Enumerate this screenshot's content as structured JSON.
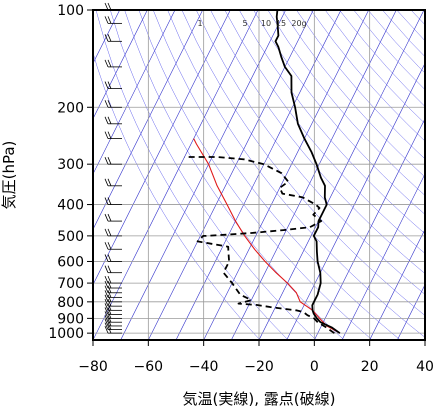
{
  "chart_data": {
    "type": "line",
    "title": "",
    "xlabel": "気温(実線), 露点(破線)",
    "ylabel": "気圧(hPa)",
    "xlim": [
      -80,
      40
    ],
    "ylim": [
      1050,
      100
    ],
    "y_scale": "log",
    "grid": true,
    "x_ticks": [
      "−80",
      "−60",
      "−40",
      "−20",
      "0",
      "20",
      "40"
    ],
    "y_ticks": [
      "100",
      "200",
      "300",
      "400",
      "500",
      "600",
      "700",
      "800",
      "900",
      "1000"
    ],
    "mixing_ratio_labels": [
      "1",
      "5",
      "10",
      "15",
      "20g"
    ],
    "colors": {
      "temperature": "#000000",
      "dewpoint": "#000000",
      "isotherm": "#3333cc",
      "adiabat": "#6666ee",
      "parcel": "#e01b1b",
      "grid": "#9a9a9a"
    },
    "series": [
      {
        "key": "temperature",
        "style": "solid",
        "points": [
          [
            8,
            1000
          ],
          [
            4,
            960
          ],
          [
            -1,
            925
          ],
          [
            -3,
            900
          ],
          [
            -5,
            870
          ],
          [
            -6,
            850
          ],
          [
            -7,
            820
          ],
          [
            -7,
            800
          ],
          [
            -7,
            760
          ],
          [
            -8,
            700
          ],
          [
            -10,
            650
          ],
          [
            -13,
            600
          ],
          [
            -15,
            560
          ],
          [
            -17,
            520
          ],
          [
            -19,
            500
          ],
          [
            -19,
            470
          ],
          [
            -20,
            450
          ],
          [
            -20,
            425
          ],
          [
            -20,
            400
          ],
          [
            -22,
            380
          ],
          [
            -24,
            350
          ],
          [
            -27,
            330
          ],
          [
            -31,
            300
          ],
          [
            -35,
            275
          ],
          [
            -40,
            250
          ],
          [
            -45,
            225
          ],
          [
            -49,
            200
          ],
          [
            -53,
            180
          ],
          [
            -56,
            160
          ],
          [
            -60,
            150
          ],
          [
            -63,
            140
          ],
          [
            -66,
            130
          ],
          [
            -68,
            125
          ],
          [
            -68,
            120
          ],
          [
            -70,
            112
          ],
          [
            -72,
            105
          ],
          [
            -73,
            100
          ]
        ]
      },
      {
        "key": "dewpoint",
        "style": "dashed",
        "points": [
          [
            6,
            1000
          ],
          [
            2,
            960
          ],
          [
            -2,
            925
          ],
          [
            -4,
            900
          ],
          [
            -7,
            880
          ],
          [
            -9,
            860
          ],
          [
            -12,
            850
          ],
          [
            -17,
            840
          ],
          [
            -22,
            830
          ],
          [
            -27,
            818
          ],
          [
            -34,
            810
          ],
          [
            -30,
            790
          ],
          [
            -35,
            760
          ],
          [
            -40,
            700
          ],
          [
            -45,
            650
          ],
          [
            -45,
            600
          ],
          [
            -47,
            560
          ],
          [
            -48,
            540
          ],
          [
            -60,
            520
          ],
          [
            -59,
            500
          ],
          [
            -58,
            500
          ],
          [
            -42,
            490
          ],
          [
            -31,
            480
          ],
          [
            -22,
            470
          ],
          [
            -19,
            450
          ],
          [
            -23,
            430
          ],
          [
            -22,
            410
          ],
          [
            -24,
            400
          ],
          [
            -30,
            380
          ],
          [
            -38,
            370
          ],
          [
            -40,
            355
          ],
          [
            -38,
            340
          ],
          [
            -42,
            320
          ],
          [
            -50,
            300
          ],
          [
            -58,
            290
          ],
          [
            -68,
            285
          ],
          [
            -80,
            285
          ]
        ]
      },
      {
        "key": "parcel",
        "style": "solid",
        "points": [
          [
            8,
            1000
          ],
          [
            2,
            950
          ],
          [
            -2,
            900
          ],
          [
            -6,
            850
          ],
          [
            -12,
            800
          ],
          [
            -15,
            750
          ],
          [
            -20,
            700
          ],
          [
            -26,
            650
          ],
          [
            -32,
            600
          ],
          [
            -38,
            550
          ],
          [
            -44,
            500
          ],
          [
            -50,
            450
          ],
          [
            -56,
            400
          ],
          [
            -63,
            350
          ],
          [
            -70,
            300
          ],
          [
            -78,
            260
          ],
          [
            -80,
            250
          ]
        ]
      }
    ],
    "wind_barbs_levels": [
      1000,
      975,
      950,
      925,
      900,
      875,
      850,
      825,
      800,
      775,
      750,
      725,
      700,
      650,
      600,
      550,
      500,
      450,
      400,
      350,
      300,
      250,
      225,
      200,
      175,
      150,
      125,
      110,
      100
    ]
  }
}
